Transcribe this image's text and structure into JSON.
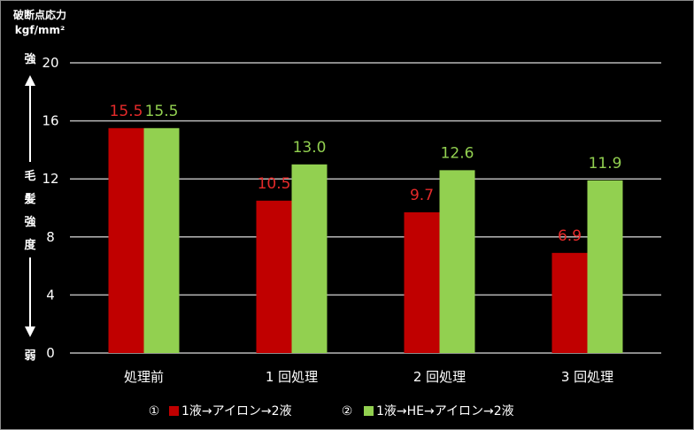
{
  "chart_data": {
    "type": "bar",
    "title": "",
    "unit_label_line1": "破断点応力",
    "unit_label_line2": "kgf/mm²",
    "ylabel": "毛髪強度",
    "ylabel_chars": [
      "毛",
      "髪",
      "強",
      "度"
    ],
    "axis_top_label": "強",
    "axis_bottom_label": "弱",
    "ylim": [
      0,
      20
    ],
    "yticks": [
      "0",
      "4",
      "8",
      "12",
      "16",
      "20"
    ],
    "ytick_values": [
      0,
      4,
      8,
      12,
      16,
      20
    ],
    "grid": true,
    "legend_position": "bottom",
    "categories": [
      "処理前",
      "1 回処理",
      "2 回処理",
      "3 回処理"
    ],
    "series": [
      {
        "name": "1液→アイロン→2液",
        "legend_number": "①",
        "color": "#c00000",
        "label_color": "#e52a2a",
        "values": [
          15.5,
          10.5,
          9.7,
          6.9
        ],
        "labels": [
          "15.5",
          "10.5",
          "9.7",
          "6.9"
        ]
      },
      {
        "name": "1液→HE→アイロン→2液",
        "legend_number": "②",
        "color": "#92d050",
        "label_color": "#92d050",
        "values": [
          15.5,
          13.0,
          12.6,
          11.9
        ],
        "labels": [
          "15.5",
          "13.0",
          "12.6",
          "11.9"
        ]
      }
    ]
  }
}
